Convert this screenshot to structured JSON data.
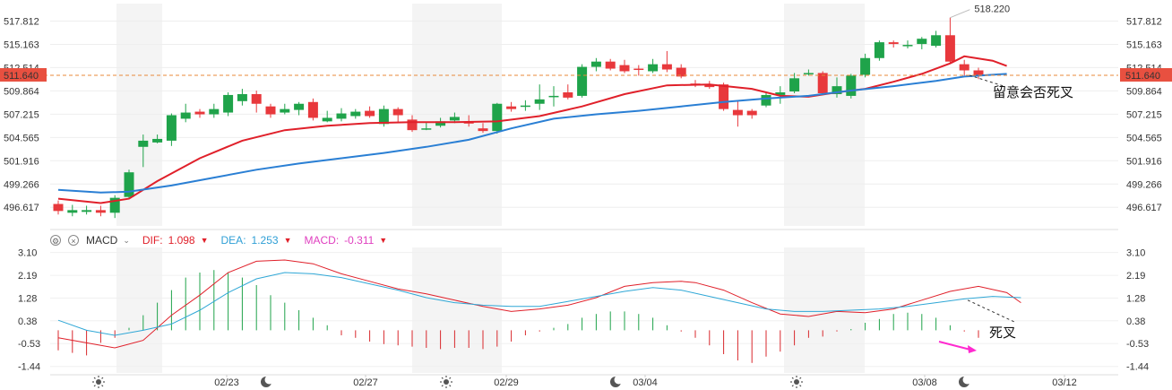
{
  "toolbar": {
    "settings_icon": "gear-icon",
    "close_icon": "close-icon",
    "indicator": "MACD",
    "dif_label": "DIF:",
    "dif_value": "1.098",
    "dea_label": "DEA:",
    "dea_value": "1.253",
    "macd_label": "MACD:",
    "macd_value": "-0.311",
    "colors": {
      "dif": "#e0202a",
      "dea": "#2f9fd6",
      "macd": "#e040c0"
    }
  },
  "annotations": {
    "price_top": "518.220",
    "last_price": "511.640",
    "price_note": "留意会否死叉",
    "macd_note": "死叉"
  },
  "chart_data": [
    {
      "type": "candlestick",
      "yticks": [
        "496.617",
        "499.266",
        "501.916",
        "504.565",
        "507.215",
        "509.864",
        "512.514",
        "515.163",
        "517.812"
      ],
      "ylim": [
        494.5,
        519.8
      ],
      "xticks": [
        "02/23",
        "02/27",
        "02/29",
        "03/04",
        "03/08",
        "03/12"
      ],
      "candles": [
        [
          497.0,
          496.2,
          497.4,
          495.8
        ],
        [
          496.0,
          496.3,
          496.9,
          495.6
        ],
        [
          496.1,
          496.3,
          496.8,
          495.8
        ],
        [
          496.3,
          496.0,
          496.8,
          495.6
        ],
        [
          496.0,
          497.7,
          498.0,
          495.4
        ],
        [
          497.8,
          500.6,
          500.9,
          497.6
        ],
        [
          503.5,
          504.2,
          504.9,
          501.2
        ],
        [
          504.0,
          504.4,
          504.9,
          503.9
        ],
        [
          504.2,
          507.1,
          507.3,
          503.6
        ],
        [
          506.7,
          507.4,
          508.4,
          506.3
        ],
        [
          507.5,
          507.2,
          507.8,
          506.8
        ],
        [
          507.2,
          507.8,
          508.4,
          506.8
        ],
        [
          507.4,
          509.4,
          509.7,
          507.0
        ],
        [
          508.7,
          509.5,
          510.1,
          508.2
        ],
        [
          509.5,
          508.4,
          509.9,
          507.4
        ],
        [
          508.1,
          507.2,
          508.4,
          506.8
        ],
        [
          507.4,
          507.8,
          508.4,
          507.2
        ],
        [
          507.7,
          508.4,
          508.6,
          507.1
        ],
        [
          508.6,
          506.8,
          509.0,
          506.5
        ],
        [
          506.4,
          506.8,
          507.6,
          506.3
        ],
        [
          506.7,
          507.3,
          507.9,
          506.4
        ],
        [
          507.0,
          507.5,
          507.8,
          506.7
        ],
        [
          507.6,
          507.0,
          508.1,
          506.8
        ],
        [
          506.1,
          507.8,
          508.2,
          505.8
        ],
        [
          507.8,
          507.1,
          508.0,
          506.3
        ],
        [
          506.6,
          505.4,
          507.1,
          505.2
        ],
        [
          505.6,
          505.6,
          506.3,
          505.4
        ],
        [
          505.9,
          506.4,
          506.8,
          505.7
        ],
        [
          506.5,
          506.9,
          507.4,
          506.2
        ],
        [
          506.3,
          506.2,
          507.1,
          505.8
        ],
        [
          505.6,
          505.3,
          506.2,
          505.1
        ],
        [
          505.3,
          508.4,
          508.5,
          505.0
        ],
        [
          508.1,
          507.8,
          508.6,
          507.5
        ],
        [
          508.2,
          508.2,
          508.8,
          507.6
        ],
        [
          508.4,
          508.9,
          510.6,
          507.7
        ],
        [
          509.3,
          509.3,
          510.4,
          508.1
        ],
        [
          509.7,
          509.1,
          510.6,
          508.9
        ],
        [
          509.3,
          512.6,
          512.9,
          509.1
        ],
        [
          512.6,
          513.2,
          513.6,
          512.1
        ],
        [
          513.2,
          512.4,
          513.5,
          512.2
        ],
        [
          512.8,
          512.1,
          513.4,
          511.9
        ],
        [
          512.4,
          512.3,
          512.8,
          511.6
        ],
        [
          512.1,
          512.9,
          513.5,
          511.9
        ],
        [
          512.9,
          512.3,
          514.4,
          512.0
        ],
        [
          512.5,
          511.5,
          512.9,
          511.3
        ],
        [
          510.7,
          510.6,
          511.1,
          510.3
        ],
        [
          510.6,
          510.3,
          511.0,
          510.1
        ],
        [
          510.6,
          507.8,
          510.8,
          507.6
        ],
        [
          507.7,
          507.1,
          508.8,
          505.8
        ],
        [
          507.6,
          507.1,
          507.8,
          506.7
        ],
        [
          508.2,
          509.4,
          509.8,
          508.0
        ],
        [
          509.4,
          509.7,
          510.4,
          508.4
        ],
        [
          509.8,
          511.3,
          511.9,
          509.6
        ],
        [
          511.8,
          511.9,
          512.3,
          511.6
        ],
        [
          511.9,
          509.6,
          512.1,
          509.4
        ],
        [
          509.5,
          510.4,
          511.4,
          509.1
        ],
        [
          509.3,
          511.6,
          511.8,
          509.0
        ],
        [
          511.7,
          513.6,
          514.1,
          511.4
        ],
        [
          513.6,
          515.4,
          515.6,
          513.3
        ],
        [
          515.4,
          515.2,
          515.6,
          514.8
        ],
        [
          515.0,
          515.1,
          515.6,
          514.7
        ],
        [
          515.2,
          515.8,
          516.0,
          514.6
        ],
        [
          515.0,
          516.2,
          516.7,
          514.8
        ],
        [
          516.2,
          513.2,
          518.2,
          513.0
        ],
        [
          512.9,
          512.2,
          513.4,
          511.6
        ],
        [
          512.2,
          511.6,
          512.5,
          511.2
        ]
      ],
      "ma_short": [
        [
          0,
          497.6
        ],
        [
          3,
          497.1
        ],
        [
          5,
          497.6
        ],
        [
          7,
          499.6
        ],
        [
          10,
          502.2
        ],
        [
          13,
          504.2
        ],
        [
          16,
          505.4
        ],
        [
          19,
          505.9
        ],
        [
          22,
          506.2
        ],
        [
          25,
          506.3
        ],
        [
          28,
          506.3
        ],
        [
          31,
          506.4
        ],
        [
          34,
          507.0
        ],
        [
          37,
          508.1
        ],
        [
          40,
          509.5
        ],
        [
          43,
          510.5
        ],
        [
          46,
          510.6
        ],
        [
          49,
          510.1
        ],
        [
          51,
          509.3
        ],
        [
          53,
          509.2
        ],
        [
          55,
          509.7
        ],
        [
          57,
          510.1
        ],
        [
          59,
          510.9
        ],
        [
          61,
          511.8
        ],
        [
          63,
          513.0
        ],
        [
          64,
          513.8
        ],
        [
          66,
          513.3
        ],
        [
          67,
          512.7
        ]
      ],
      "ma_long": [
        [
          0,
          498.6
        ],
        [
          3,
          498.3
        ],
        [
          5,
          498.4
        ],
        [
          8,
          499.1
        ],
        [
          11,
          500.0
        ],
        [
          14,
          500.9
        ],
        [
          17,
          501.6
        ],
        [
          20,
          502.2
        ],
        [
          23,
          502.8
        ],
        [
          26,
          503.5
        ],
        [
          29,
          504.3
        ],
        [
          32,
          505.6
        ],
        [
          35,
          506.7
        ],
        [
          38,
          507.2
        ],
        [
          41,
          507.6
        ],
        [
          44,
          508.1
        ],
        [
          47,
          508.6
        ],
        [
          50,
          509.0
        ],
        [
          53,
          509.3
        ],
        [
          56,
          509.9
        ],
        [
          59,
          510.4
        ],
        [
          62,
          511.0
        ],
        [
          64,
          511.5
        ],
        [
          67,
          511.8
        ]
      ],
      "last_price": 511.64
    },
    {
      "type": "macd",
      "yticks": [
        "3.10",
        "2.19",
        "1.28",
        "0.38",
        "-0.53",
        "-1.44"
      ],
      "ylim": [
        -1.7,
        3.3
      ],
      "histogram": [
        -0.8,
        -0.9,
        -1.0,
        -0.5,
        -0.3,
        0.1,
        0.6,
        1.1,
        1.6,
        2.1,
        2.3,
        2.4,
        2.3,
        2.1,
        1.8,
        1.4,
        1.1,
        0.8,
        0.5,
        0.2,
        -0.2,
        -0.3,
        -0.45,
        -0.55,
        -0.6,
        -0.65,
        -0.7,
        -0.75,
        -0.7,
        -0.7,
        -0.75,
        -0.65,
        -0.45,
        -0.2,
        -0.05,
        0.1,
        0.25,
        0.5,
        0.65,
        0.75,
        0.75,
        0.65,
        0.5,
        0.2,
        -0.05,
        -0.3,
        -0.6,
        -0.95,
        -1.2,
        -1.3,
        -1.05,
        -0.85,
        -0.6,
        -0.3,
        -0.25,
        -0.05,
        0.05,
        0.3,
        0.45,
        0.65,
        0.7,
        0.65,
        0.5,
        0.2,
        -0.05,
        -0.3
      ],
      "dif": [
        [
          0,
          -0.3
        ],
        [
          2,
          -0.5
        ],
        [
          4,
          -0.7
        ],
        [
          6,
          -0.4
        ],
        [
          8,
          0.6
        ],
        [
          10,
          1.4
        ],
        [
          12,
          2.3
        ],
        [
          14,
          2.75
        ],
        [
          16,
          2.8
        ],
        [
          18,
          2.65
        ],
        [
          20,
          2.25
        ],
        [
          22,
          1.95
        ],
        [
          24,
          1.65
        ],
        [
          26,
          1.45
        ],
        [
          28,
          1.2
        ],
        [
          30,
          0.95
        ],
        [
          32,
          0.75
        ],
        [
          34,
          0.85
        ],
        [
          36,
          1.0
        ],
        [
          38,
          1.3
        ],
        [
          40,
          1.75
        ],
        [
          42,
          1.9
        ],
        [
          44,
          1.95
        ],
        [
          45,
          1.9
        ],
        [
          47,
          1.6
        ],
        [
          49,
          1.1
        ],
        [
          51,
          0.65
        ],
        [
          53,
          0.55
        ],
        [
          55,
          0.75
        ],
        [
          57,
          0.7
        ],
        [
          59,
          0.85
        ],
        [
          61,
          1.2
        ],
        [
          63,
          1.55
        ],
        [
          65,
          1.75
        ],
        [
          67,
          1.5
        ],
        [
          68,
          1.1
        ]
      ],
      "dea": [
        [
          0,
          0.4
        ],
        [
          2,
          0.0
        ],
        [
          4,
          -0.2
        ],
        [
          6,
          0.0
        ],
        [
          8,
          0.25
        ],
        [
          10,
          0.8
        ],
        [
          12,
          1.5
        ],
        [
          14,
          2.05
        ],
        [
          16,
          2.3
        ],
        [
          18,
          2.25
        ],
        [
          20,
          2.1
        ],
        [
          22,
          1.85
        ],
        [
          24,
          1.6
        ],
        [
          26,
          1.3
        ],
        [
          28,
          1.1
        ],
        [
          30,
          1.0
        ],
        [
          32,
          0.95
        ],
        [
          34,
          0.95
        ],
        [
          36,
          1.15
        ],
        [
          38,
          1.35
        ],
        [
          40,
          1.55
        ],
        [
          42,
          1.7
        ],
        [
          44,
          1.6
        ],
        [
          46,
          1.35
        ],
        [
          48,
          1.1
        ],
        [
          50,
          0.85
        ],
        [
          52,
          0.75
        ],
        [
          54,
          0.75
        ],
        [
          56,
          0.8
        ],
        [
          58,
          0.85
        ],
        [
          60,
          0.95
        ],
        [
          62,
          1.1
        ],
        [
          64,
          1.25
        ],
        [
          66,
          1.35
        ],
        [
          68,
          1.3
        ]
      ]
    }
  ]
}
